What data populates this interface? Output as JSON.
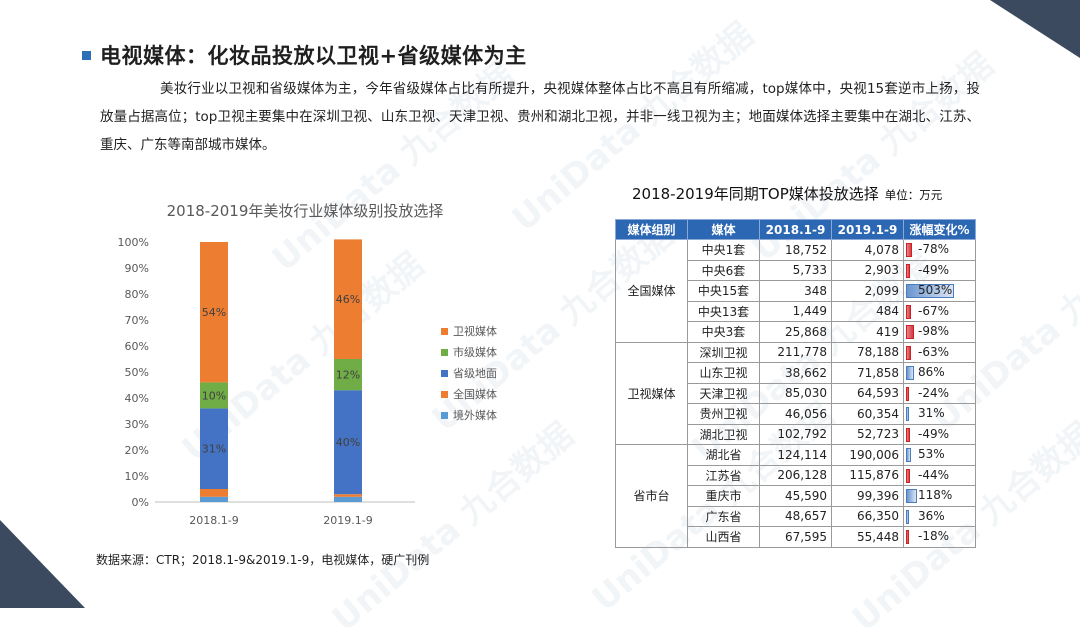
{
  "page": {
    "title": "电视媒体：化妆品投放以卫视+省级媒体为主",
    "intro": "美妆行业以卫视和省级媒体为主，今年省级媒体占比有所提升，央视媒体整体占比不高且有所缩减，top媒体中，央视15套逆市上扬，投放量占据高位；top卫视主要集中在深圳卫视、山东卫视、天津卫视、贵州和湖北卫视，并非一线卫视为主；地面媒体选择主要集中在湖北、江苏、重庆、广东等南部城市媒体。",
    "source": "数据来源：CTR；2018.1-9&2019.1-9，电视媒体，硬广刊例",
    "watermark": "UniData 九合数据"
  },
  "chart_data": [
    {
      "type": "bar",
      "stacked": true,
      "title": "2018-2019年美妆行业媒体级别投放选择",
      "categories": [
        "2018.1-9",
        "2019.1-9"
      ],
      "ylim": [
        0,
        100
      ],
      "yticks": [
        "0%",
        "10%",
        "20%",
        "30%",
        "40%",
        "50%",
        "60%",
        "70%",
        "80%",
        "90%",
        "100%"
      ],
      "legend_position": "right",
      "series": [
        {
          "name": "境外媒体",
          "color": "#5b9bd5",
          "values": [
            2,
            2
          ],
          "labels": [
            "",
            ""
          ]
        },
        {
          "name": "全国媒体",
          "color": "#ed7d31",
          "values": [
            3,
            1
          ],
          "labels": [
            "",
            ""
          ]
        },
        {
          "name": "省级地面",
          "color": "#4472c4",
          "values": [
            31,
            40
          ],
          "labels": [
            "31%",
            "40%"
          ]
        },
        {
          "name": "市级媒体",
          "color": "#70ad47",
          "values": [
            10,
            12
          ],
          "labels": [
            "10%",
            "12%"
          ]
        },
        {
          "name": "卫视媒体",
          "color": "#ed7d31",
          "values": [
            54,
            46
          ],
          "labels": [
            "54%",
            "46%"
          ]
        }
      ]
    },
    {
      "type": "table",
      "title": "2018-2019年同期TOP媒体投放选择",
      "unit": "单位：万元",
      "headers": [
        "媒体组别",
        "媒体",
        "2018.1-9",
        "2019.1-9",
        "涨幅变化%"
      ],
      "groups": [
        {
          "name": "全国媒体",
          "rows": [
            {
              "media": "中央1套",
              "y2018": "18,752",
              "y2019": "4,078",
              "change": "-78%",
              "pct": -78
            },
            {
              "media": "中央6套",
              "y2018": "5,733",
              "y2019": "2,903",
              "change": "-49%",
              "pct": -49
            },
            {
              "media": "中央15套",
              "y2018": "348",
              "y2019": "2,099",
              "change": "503%",
              "pct": 503
            },
            {
              "media": "中央13套",
              "y2018": "1,449",
              "y2019": "484",
              "change": "-67%",
              "pct": -67
            },
            {
              "media": "中央3套",
              "y2018": "25,868",
              "y2019": "419",
              "change": "-98%",
              "pct": -98
            }
          ]
        },
        {
          "name": "卫视媒体",
          "rows": [
            {
              "media": "深圳卫视",
              "y2018": "211,778",
              "y2019": "78,188",
              "change": "-63%",
              "pct": -63
            },
            {
              "media": "山东卫视",
              "y2018": "38,662",
              "y2019": "71,858",
              "change": "86%",
              "pct": 86
            },
            {
              "media": "天津卫视",
              "y2018": "85,030",
              "y2019": "64,593",
              "change": "-24%",
              "pct": -24
            },
            {
              "media": "贵州卫视",
              "y2018": "46,056",
              "y2019": "60,354",
              "change": "31%",
              "pct": 31
            },
            {
              "media": "湖北卫视",
              "y2018": "102,792",
              "y2019": "52,723",
              "change": "-49%",
              "pct": -49
            }
          ]
        },
        {
          "name": "省市台",
          "rows": [
            {
              "media": "湖北省",
              "y2018": "124,114",
              "y2019": "190,006",
              "change": "53%",
              "pct": 53
            },
            {
              "media": "江苏省",
              "y2018": "206,128",
              "y2019": "115,876",
              "change": "-44%",
              "pct": -44
            },
            {
              "media": "重庆市",
              "y2018": "45,590",
              "y2019": "99,396",
              "change": "118%",
              "pct": 118
            },
            {
              "media": "广东省",
              "y2018": "48,657",
              "y2019": "66,350",
              "change": "36%",
              "pct": 36
            },
            {
              "media": "山西省",
              "y2018": "67,595",
              "y2019": "55,448",
              "change": "-18%",
              "pct": -18
            }
          ]
        }
      ]
    }
  ]
}
